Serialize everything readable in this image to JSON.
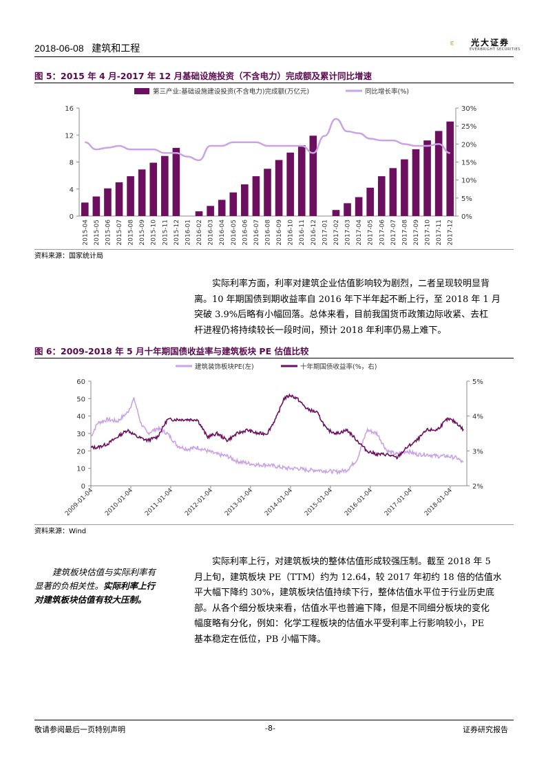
{
  "header": {
    "date": "2018-06-08",
    "section": "建筑和工程",
    "logo_cn": "光大证券",
    "logo_en": "EVERBRIGHT SECURITIES"
  },
  "figure5": {
    "title": "图 5：2015 年 4 月-2017 年 12 月基础设施投资（不含电力）完成额及累计同比增速",
    "source": "资料来源：国家统计局"
  },
  "figure6": {
    "title": "图 6：2009-2018 年 5 月十年期国债收益率与建筑板块 PE 估值比较",
    "source": "资料来源：Wind"
  },
  "paragraph1": [
    "实际利率方面，利率对建筑企业估值影响较为剧烈，二者呈现较明显背",
    "离。10 年期国债到期收益率自 2016 年下半年起不断上行，至 2018 年 1 月",
    "突破 3.9%后略有小幅回落。总体来看，目前我国货币政策边际收紧、去杠",
    "杆进程仍将持续较长一段时间，预计 2018 年利率仍易上难下。"
  ],
  "paragraph2": [
    "实际利率上行，对建筑板块的整体估值形成较强压制。截至 2018 年 5",
    "月上旬，建筑板块 PE（TTM）约为 12.64，较 2017 年初约 18 倍的估值水",
    "平大幅下降约 30%，建筑板块估值持续下行，整体估值水平位于行业历史底",
    "部。从各个细分板块来看，估值水平也普遍下降，但是不同细分板块的变化",
    "幅度略有分化，例如：化学工程板块的估值水平受利率上行影响较小，PE",
    "基本稳定在低位，PB 小幅下降。"
  ],
  "sidebar": {
    "line1": "建筑板块估值与实际利率有",
    "line2a": "显著的负相关性。",
    "line2b": "实际利率上行",
    "line3": "对建筑板块估值有较大压制。"
  },
  "footer": {
    "left": "敬请参阅最后一页特别声明",
    "center": "-8-",
    "right": "证券研究报告"
  },
  "colors": {
    "bar": "#6b0f5e",
    "light_line": "#c9a3e6",
    "dark_line": "#6b0f5e",
    "title": "#5b0a4f"
  },
  "chart_data": [
    {
      "type": "bar",
      "categories": [
        "2015-04",
        "2015-05",
        "2015-06",
        "2015-07",
        "2015-08",
        "2015-09",
        "2015-10",
        "2015-11",
        "2015-12",
        "2016-01",
        "2016-02",
        "2016-03",
        "2016-04",
        "2016-05",
        "2016-06",
        "2016-07",
        "2016-08",
        "2016-09",
        "2016-10",
        "2016-11",
        "2016-12",
        "2017-01",
        "2017-02",
        "2017-03",
        "2017-04",
        "2017-05",
        "2017-06",
        "2017-07",
        "2017-08",
        "2017-09",
        "2017-10",
        "2017-11",
        "2017-12"
      ],
      "series": [
        {
          "name": "第三产业:基础设施建设投资(不含电力)完成额(万亿元)",
          "axis": "left",
          "values": [
            2.0,
            2.9,
            4.1,
            5.0,
            5.9,
            6.9,
            7.9,
            8.9,
            10.1,
            null,
            0.7,
            1.5,
            2.4,
            3.5,
            4.7,
            5.9,
            7.0,
            8.3,
            9.4,
            10.5,
            11.9,
            null,
            0.9,
            1.9,
            2.8,
            4.2,
            5.9,
            7.1,
            8.4,
            9.9,
            11.2,
            12.6,
            14.0
          ]
        },
        {
          "name": "同比增长率(%)",
          "axis": "right",
          "values": [
            20.5,
            18.5,
            19.0,
            19.5,
            18.5,
            18.5,
            18.5,
            17.5,
            17.5,
            null,
            15.5,
            19.5,
            19.5,
            20.5,
            20.5,
            20.5,
            19.5,
            19.5,
            19.5,
            19.5,
            17.5,
            null,
            27.0,
            23.5,
            23.0,
            21.5,
            21.0,
            21.0,
            20.0,
            19.5,
            19.5,
            20.0,
            17.5
          ]
        }
      ],
      "left_ticks": [
        "0",
        "4",
        "8",
        "12",
        "16"
      ],
      "right_ticks": [
        "0%",
        "5%",
        "10%",
        "15%",
        "20%",
        "25%",
        "30%"
      ],
      "ylim_left": [
        0,
        16
      ],
      "ylim_right": [
        0,
        30
      ]
    },
    {
      "type": "line",
      "x_ticks": [
        "2009-01-04",
        "2010-01-04",
        "2011-01-04",
        "2012-01-04",
        "2013-01-04",
        "2014-01-04",
        "2015-01-04",
        "2016-01-04",
        "2017-01-04",
        "2018-01-04"
      ],
      "x_range": [
        "2009-01",
        "2018-05"
      ],
      "series": [
        {
          "name": "建筑装饰板块PE(左)",
          "axis": "left",
          "x": [
            "2009-01",
            "2009-03",
            "2009-06",
            "2009-09",
            "2009-12",
            "2010-02",
            "2010-04",
            "2010-06",
            "2010-09",
            "2010-12",
            "2011-03",
            "2011-06",
            "2011-09",
            "2011-12",
            "2012-03",
            "2012-06",
            "2012-09",
            "2012-12",
            "2013-03",
            "2013-06",
            "2013-09",
            "2013-12",
            "2014-03",
            "2014-06",
            "2014-09",
            "2014-12",
            "2015-03",
            "2015-06",
            "2015-09",
            "2015-12",
            "2016-03",
            "2016-06",
            "2016-09",
            "2016-12",
            "2017-03",
            "2017-06",
            "2017-09",
            "2017-12",
            "2018-03",
            "2018-05"
          ],
          "values": [
            28,
            36,
            38,
            37,
            42,
            50,
            36,
            30,
            33,
            30,
            23,
            21,
            22,
            20,
            18,
            17,
            14,
            13,
            12,
            12,
            11,
            10,
            10,
            9,
            9,
            8.5,
            8,
            9,
            15,
            32,
            30,
            20,
            18,
            20,
            18,
            18,
            17,
            17,
            16,
            13
          ]
        },
        {
          "name": "十年期国债收益率(%，右)",
          "axis": "right",
          "x": [
            "2009-01",
            "2009-03",
            "2009-06",
            "2009-09",
            "2009-12",
            "2010-03",
            "2010-06",
            "2010-09",
            "2010-12",
            "2011-03",
            "2011-06",
            "2011-09",
            "2011-12",
            "2012-03",
            "2012-06",
            "2012-09",
            "2012-12",
            "2013-03",
            "2013-06",
            "2013-09",
            "2013-11",
            "2014-01",
            "2014-03",
            "2014-06",
            "2014-09",
            "2014-12",
            "2015-03",
            "2015-06",
            "2015-09",
            "2015-12",
            "2016-03",
            "2016-06",
            "2016-09",
            "2016-12",
            "2017-03",
            "2017-06",
            "2017-09",
            "2017-12",
            "2018-01",
            "2018-03",
            "2018-05"
          ],
          "values": [
            3.1,
            3.1,
            3.2,
            3.4,
            3.6,
            3.4,
            3.3,
            3.4,
            3.9,
            3.9,
            3.9,
            3.9,
            3.4,
            3.5,
            3.3,
            3.5,
            3.6,
            3.5,
            3.5,
            4.0,
            4.5,
            4.6,
            4.5,
            4.2,
            4.1,
            3.6,
            3.5,
            3.6,
            3.3,
            3.0,
            2.9,
            2.9,
            2.8,
            3.1,
            3.3,
            3.6,
            3.6,
            3.9,
            3.9,
            3.8,
            3.6
          ]
        }
      ],
      "left_ticks": [
        "0",
        "10",
        "20",
        "30",
        "40",
        "50",
        "60"
      ],
      "right_ticks": [
        "2%",
        "3%",
        "4%",
        "5%"
      ],
      "ylim_left": [
        0,
        60
      ],
      "ylim_right": [
        2,
        5
      ]
    }
  ]
}
